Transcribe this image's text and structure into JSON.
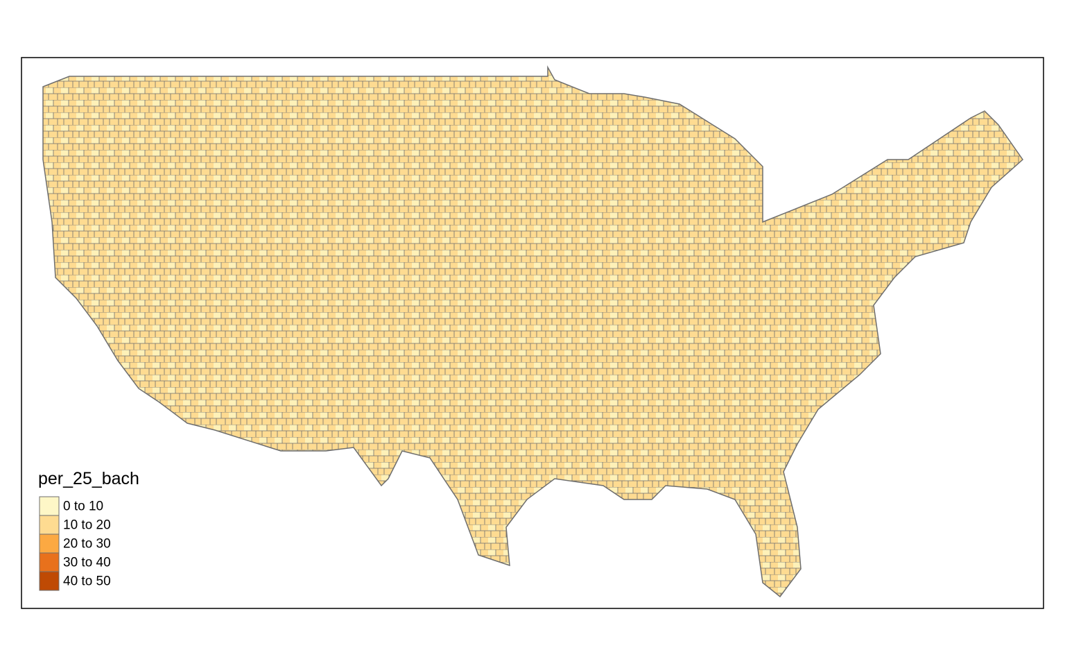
{
  "legend": {
    "title": "per_25_bach",
    "items": [
      {
        "label": "0 to 10",
        "color": "#fef7c7"
      },
      {
        "label": "10 to 20",
        "color": "#fedb91"
      },
      {
        "label": "20 to 30",
        "color": "#fca942"
      },
      {
        "label": "30 to 40",
        "color": "#e8711c"
      },
      {
        "label": "40 to 50",
        "color": "#bf4a04"
      }
    ]
  }
}
